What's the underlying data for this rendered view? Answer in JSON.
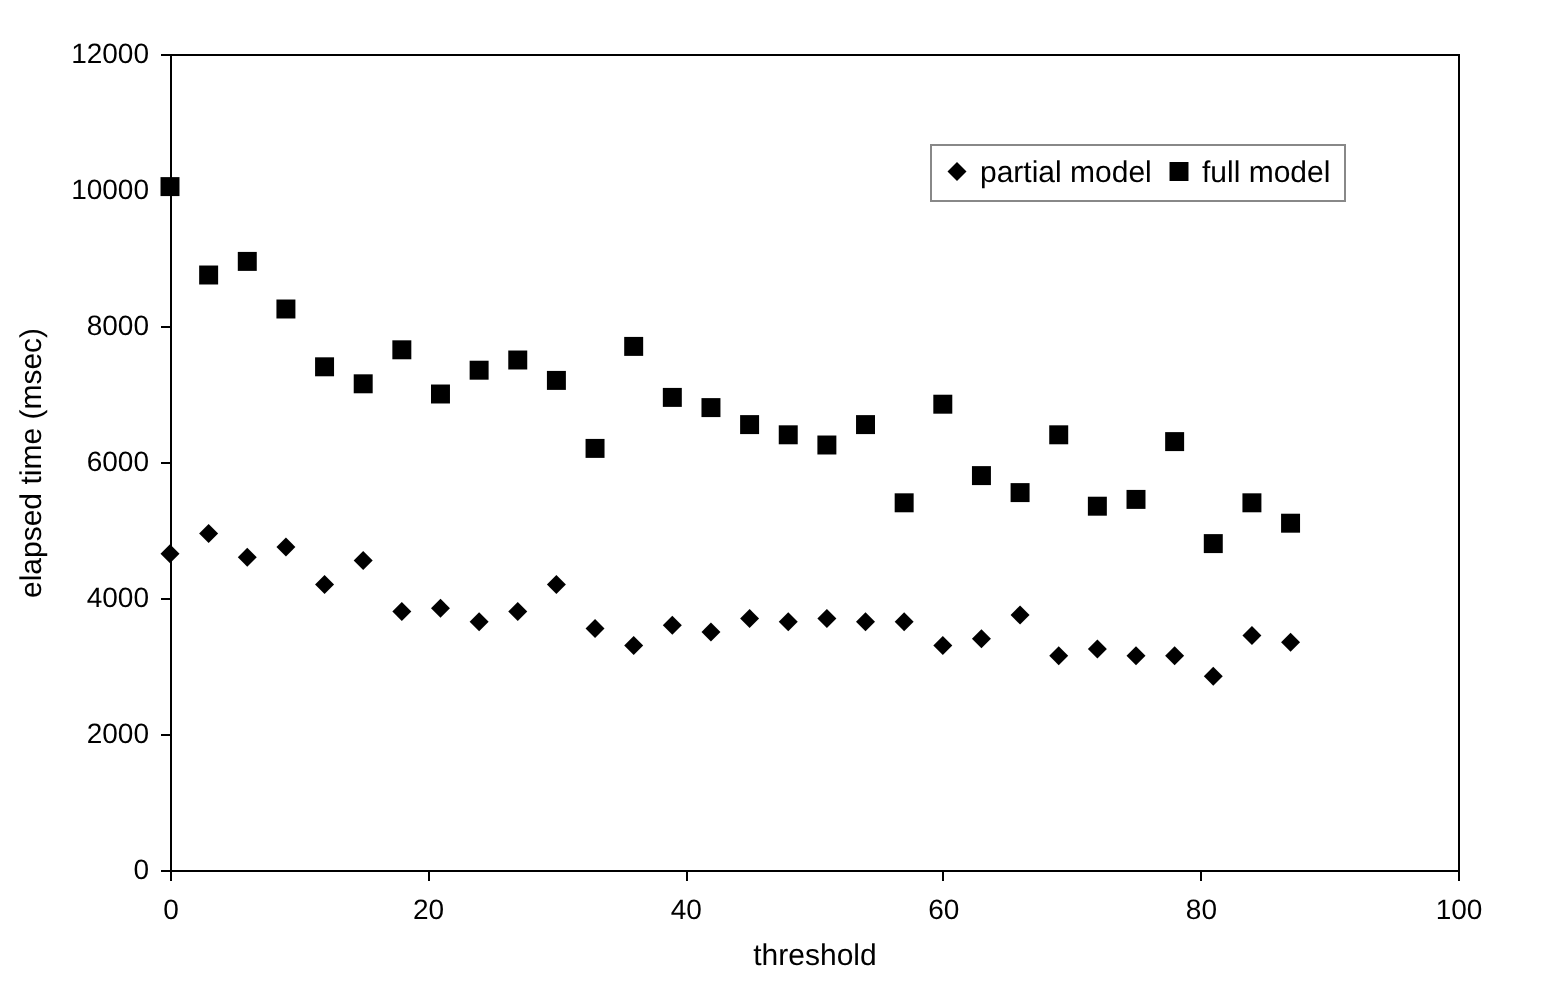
{
  "chart_data": {
    "type": "scatter",
    "xlabel": "threshold",
    "ylabel": "elapsed time (msec)",
    "x": [
      0,
      3,
      6,
      9,
      12,
      15,
      18,
      21,
      24,
      27,
      30,
      33,
      36,
      39,
      42,
      45,
      48,
      51,
      54,
      57,
      60,
      63,
      66,
      69,
      72,
      75,
      78,
      81,
      84,
      87
    ],
    "series": [
      {
        "name": "partial model",
        "color": "#000000",
        "marker": "diamond",
        "values": [
          4650,
          4950,
          4600,
          4750,
          4200,
          4550,
          3800,
          3850,
          3650,
          3800,
          4200,
          3550,
          3300,
          3600,
          3500,
          3700,
          3650,
          3700,
          3650,
          3650,
          3300,
          3400,
          3750,
          3150,
          3250,
          3150,
          3150,
          2850,
          3450,
          3350
        ]
      },
      {
        "name": "full model",
        "color": "#000000",
        "marker": "square",
        "values": [
          10050,
          8750,
          8950,
          8250,
          7400,
          7150,
          7650,
          7000,
          7350,
          7500,
          7200,
          6200,
          7700,
          6950,
          6800,
          6550,
          6400,
          6250,
          6550,
          5400,
          6850,
          5800,
          5550,
          6400,
          5350,
          5450,
          6300,
          4800,
          5400,
          5100
        ]
      }
    ],
    "xlim": [
      0,
      100
    ],
    "xticks": [
      0,
      20,
      40,
      60,
      80,
      100
    ],
    "ylim": [
      0,
      12000
    ],
    "yticks": [
      0,
      2000,
      4000,
      6000,
      8000,
      10000,
      12000
    ],
    "grid": false,
    "legend": "top right"
  }
}
